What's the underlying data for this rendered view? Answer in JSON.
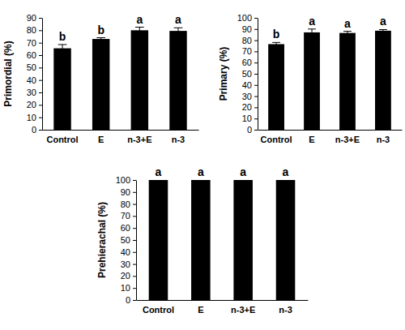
{
  "chart_data": [
    {
      "type": "bar",
      "y_label": "Primordial (%)",
      "categories": [
        "Control",
        "E",
        "n-3+E",
        "n-3"
      ],
      "values": [
        65.5,
        73,
        80,
        79.5
      ],
      "errors": [
        3,
        1,
        2.5,
        2.5
      ],
      "annotations": [
        "b",
        "b",
        "a",
        "a"
      ],
      "color": "#000000",
      "ylim": [
        0,
        90
      ],
      "yticks": [
        0,
        10,
        20,
        30,
        40,
        50,
        60,
        70,
        80,
        90
      ]
    },
    {
      "type": "bar",
      "y_label": "Primary (%)",
      "categories": [
        "Control",
        "E",
        "n-3+E",
        "n-3"
      ],
      "values": [
        76.5,
        87,
        86.5,
        88.5
      ],
      "errors": [
        1.5,
        3,
        1.5,
        1
      ],
      "annotations": [
        "b",
        "a",
        "a",
        "a"
      ],
      "color": "#000000",
      "ylim": [
        0,
        100
      ],
      "yticks": [
        0,
        10,
        20,
        30,
        40,
        50,
        60,
        70,
        80,
        90,
        100
      ]
    },
    {
      "type": "bar",
      "y_label": "Prehierachal (%)",
      "categories": [
        "Control",
        "E",
        "n-3+E",
        "n-3"
      ],
      "values": [
        100,
        100,
        100,
        100
      ],
      "annotations": [
        "a",
        "a",
        "a",
        "a"
      ],
      "color": "#000000",
      "ylim": [
        0,
        100
      ],
      "yticks": [
        0,
        10,
        20,
        30,
        40,
        50,
        60,
        70,
        80,
        90,
        100
      ]
    }
  ]
}
